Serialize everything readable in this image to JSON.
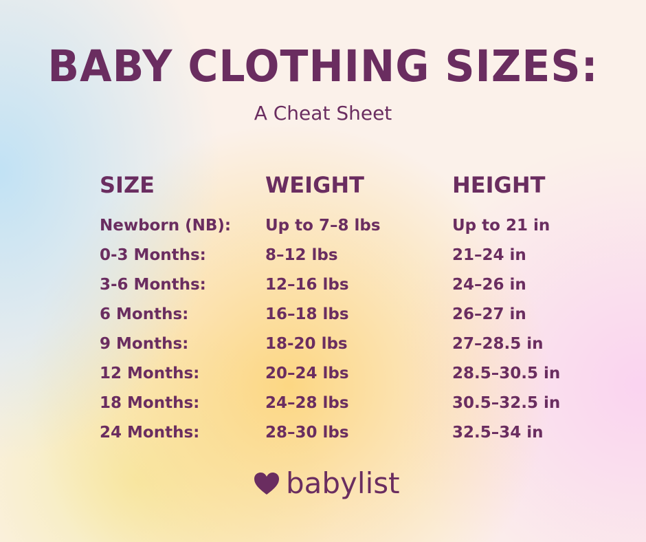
{
  "header": {
    "title": "BABY CLOTHING SIZES:",
    "subtitle": "A Cheat Sheet"
  },
  "table": {
    "columns": [
      "SIZE",
      "WEIGHT",
      "HEIGHT"
    ],
    "rows": [
      [
        "Newborn (NB):",
        "Up to 7–8 lbs",
        "Up to 21 in"
      ],
      [
        "0-3 Months:",
        "8–12 lbs",
        "21–24 in"
      ],
      [
        "3-6 Months:",
        "12–16 lbs",
        "24–26 in"
      ],
      [
        "6 Months:",
        "16–18 lbs",
        "26–27 in"
      ],
      [
        "9 Months:",
        "18-20 lbs",
        "27–28.5 in"
      ],
      [
        "12 Months:",
        "20–24 lbs",
        "28.5–30.5 in"
      ],
      [
        "18 Months:",
        "24–28 lbs",
        "30.5–32.5 in"
      ],
      [
        "24 Months:",
        "28–30 lbs",
        "32.5–34 in"
      ]
    ]
  },
  "footer": {
    "brand": "babylist"
  }
}
